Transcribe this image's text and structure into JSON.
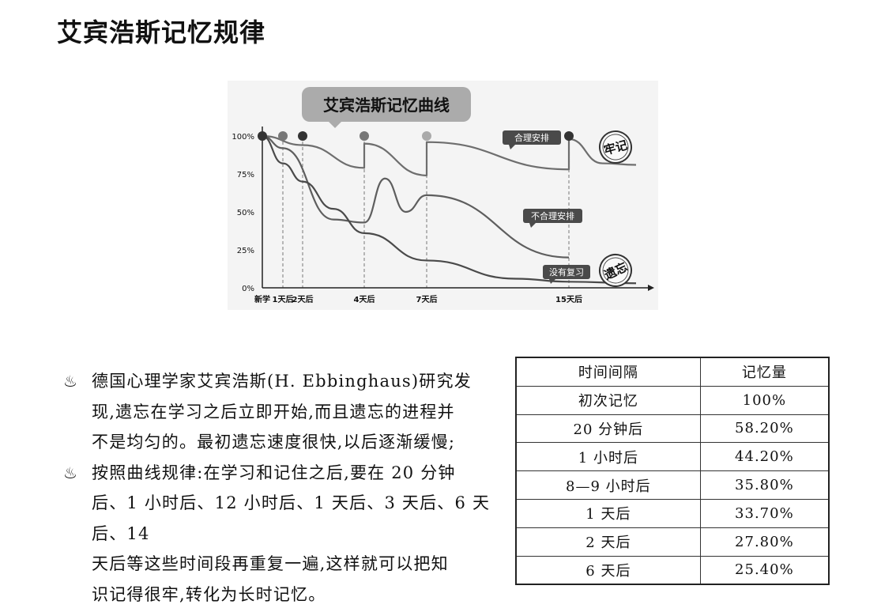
{
  "page": {
    "title": "艾宾浩斯记忆规律"
  },
  "chart_data": {
    "type": "line",
    "title": "艾宾浩斯记忆曲线",
    "y_ticks": [
      "100%",
      "75%",
      "50%",
      "25%",
      "0%"
    ],
    "x_ticks": [
      "新学",
      "1天后",
      "2天后",
      "4天后",
      "7天后",
      "15天后"
    ],
    "ylim": [
      0,
      100
    ],
    "grid": false,
    "series": [
      {
        "name": "合理安排",
        "stamp": "牢记",
        "color": "#6e6e6e",
        "x_days": [
          0,
          2,
          4,
          4,
          7,
          7,
          15,
          15,
          16,
          17
        ],
        "y_percent": [
          100,
          94,
          79,
          95,
          74,
          96,
          78,
          98,
          82,
          81
        ]
      },
      {
        "name": "不合理安排",
        "color": "#5e5e5e",
        "x_days": [
          0,
          1,
          3,
          4,
          5,
          6,
          7,
          15
        ],
        "y_percent": [
          100,
          92,
          45,
          43,
          72,
          50,
          61,
          20
        ]
      },
      {
        "name": "没有复习",
        "stamp": "遗忘",
        "color": "#4a4a4a",
        "x_days": [
          0,
          1,
          2,
          3,
          4,
          7,
          12,
          15,
          17
        ],
        "y_percent": [
          100,
          82,
          70,
          52,
          36,
          18,
          6,
          4,
          3
        ]
      }
    ],
    "markers": [
      {
        "x_day": 0,
        "y_percent": 100,
        "tone": "dark"
      },
      {
        "x_day": 1,
        "y_percent": 100,
        "tone": "mid"
      },
      {
        "x_day": 2,
        "y_percent": 100,
        "tone": "dark"
      },
      {
        "x_day": 4,
        "y_percent": 100,
        "tone": "mid"
      },
      {
        "x_day": 7,
        "y_percent": 100,
        "tone": "light"
      },
      {
        "x_day": 15,
        "y_percent": 100,
        "tone": "dark"
      }
    ]
  },
  "text": {
    "paragraphs": [
      {
        "bullet": "♨",
        "lines": [
          "德国心理学家艾宾浩斯(H. Ebbinghaus)研究发",
          "现,遗忘在学习之后立即开始,而且遗忘的进程并",
          "不是均匀的。最初遗忘速度很快,以后逐渐缓慢;"
        ]
      },
      {
        "bullet": "♨",
        "lines": [
          "按照曲线规律:在学习和记住之后,要在 20 分钟",
          "后、1 小时后、12 小时后、1 天后、3 天后、6 天后、14",
          "天后等这些时间段再重复一遍,这样就可以把知",
          "识记得很牢,转化为长时记忆。"
        ]
      }
    ]
  },
  "table": {
    "headers": [
      "时间间隔",
      "记忆量"
    ],
    "rows": [
      [
        "初次记忆",
        "100%"
      ],
      [
        "20 分钟后",
        "58.20%"
      ],
      [
        "1 小时后",
        "44.20%"
      ],
      [
        "8—9 小时后",
        "35.80%"
      ],
      [
        "1 天后",
        "33.70%"
      ],
      [
        "2 天后",
        "27.80%"
      ],
      [
        "6 天后",
        "25.40%"
      ]
    ]
  }
}
